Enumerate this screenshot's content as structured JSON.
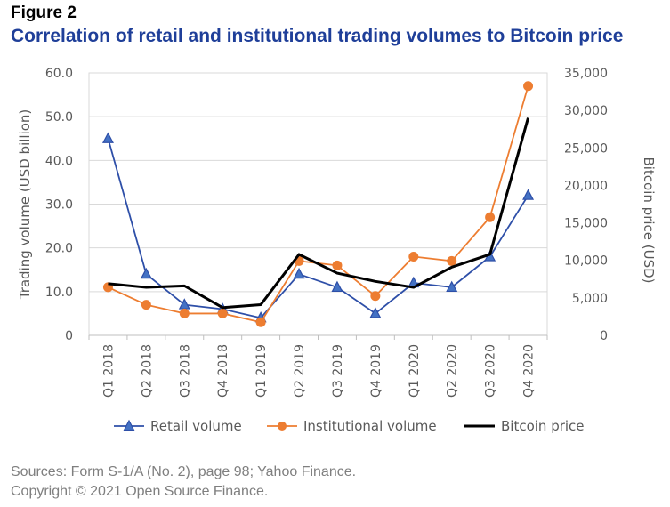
{
  "figure_label": "Figure 2",
  "chart_data": {
    "type": "line",
    "title": "Correlation of retail and institutional trading volumes to Bitcoin price",
    "categories": [
      "Q1 2018",
      "Q2 2018",
      "Q3 2018",
      "Q4 2018",
      "Q1 2019",
      "Q2 2019",
      "Q3 2019",
      "Q4 2019",
      "Q1 2020",
      "Q2 2020",
      "Q3 2020",
      "Q4 2020"
    ],
    "ylabel": "Trading volume (USD billion)",
    "y2label": "Bitcoin price (USD)",
    "ylim": [
      0,
      60
    ],
    "y2lim": [
      0,
      35000
    ],
    "yticks": [
      "0",
      "10.0",
      "20.0",
      "30.0",
      "40.0",
      "50.0",
      "60.0"
    ],
    "y2ticks": [
      "0",
      "5,000",
      "10,000",
      "15,000",
      "20,000",
      "25,000",
      "30,000",
      "35,000"
    ],
    "grid": true,
    "legend_position": "bottom",
    "series": [
      {
        "name": "Retail volume",
        "axis": "left",
        "marker": "triangle",
        "color": "#2E4FA8",
        "values": [
          45,
          14,
          7,
          6,
          4,
          14,
          11,
          5,
          12,
          11,
          18,
          32
        ]
      },
      {
        "name": "Institutional volume",
        "axis": "left",
        "marker": "circle",
        "color": "#ED7D31",
        "values": [
          11,
          7,
          5,
          5,
          3,
          17,
          16,
          9,
          18,
          17,
          27,
          57
        ]
      },
      {
        "name": "Bitcoin price",
        "axis": "right",
        "marker": "none",
        "color": "#000000",
        "values": [
          6900,
          6400,
          6600,
          3700,
          4100,
          10800,
          8300,
          7200,
          6400,
          9100,
          10800,
          29000
        ]
      }
    ]
  },
  "footer": {
    "sources": "Sources: Form S-1/A (No. 2), page 98; Yahoo Finance.",
    "copyright": "Copyright © 2021 Open Source Finance."
  }
}
